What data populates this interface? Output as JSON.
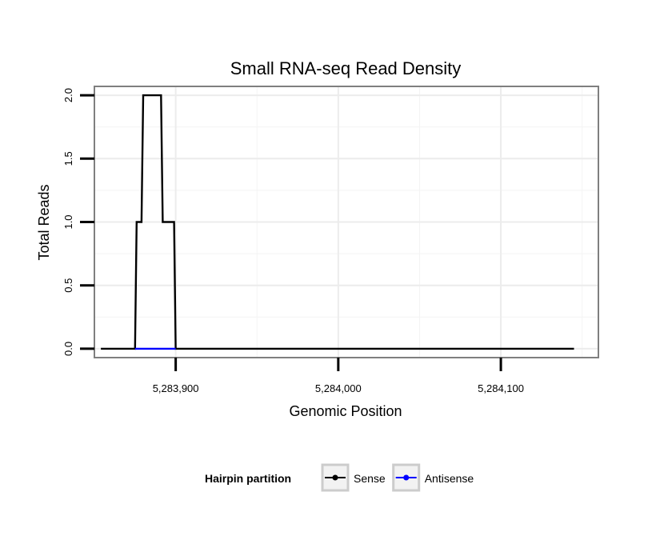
{
  "chart_data": {
    "type": "line",
    "title": "Small RNA-seq Read Density",
    "xlabel": "Genomic Position",
    "ylabel": "Total Reads",
    "xlim": [
      5283850,
      5284160
    ],
    "ylim": [
      -0.07,
      2.07
    ],
    "x_ticks": [
      {
        "value": 5283900,
        "label": "5,283,900"
      },
      {
        "value": 5284000,
        "label": "5,284,000"
      },
      {
        "value": 5284100,
        "label": "5,284,100"
      }
    ],
    "y_ticks": [
      {
        "value": 0,
        "label": "0.0"
      },
      {
        "value": 0.5,
        "label": "0.5"
      },
      {
        "value": 1,
        "label": "1.0"
      },
      {
        "value": 1.5,
        "label": "1.5"
      },
      {
        "value": 2,
        "label": "2.0"
      }
    ],
    "grid": true,
    "legend": {
      "title": "Hairpin partition",
      "position": "bottom"
    },
    "series": [
      {
        "name": "Sense",
        "color": "#000000",
        "x": [
          5283854,
          5283875,
          5283876,
          5283879,
          5283880,
          5283891,
          5283892,
          5283899,
          5283900,
          5284145
        ],
        "y": [
          0,
          0,
          1,
          1,
          2,
          2,
          1,
          1,
          0,
          0
        ]
      },
      {
        "name": "Antisense",
        "color": "#0000ff",
        "x": [
          5283875,
          5283900
        ],
        "y": [
          0,
          0
        ]
      }
    ]
  }
}
